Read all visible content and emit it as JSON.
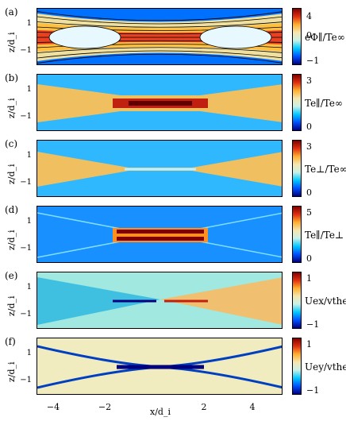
{
  "panels": [
    {
      "label": "(a)",
      "ylabel": "z/d_i",
      "cb_label": "eΦ∥/Te∞",
      "cb_ticks": [
        "4",
        "0",
        "−1"
      ],
      "type": "phi"
    },
    {
      "label": "(b)",
      "ylabel": "z/d_i",
      "cb_label": "Te∥/Te∞",
      "cb_ticks": [
        "3",
        "0"
      ],
      "type": "tpar"
    },
    {
      "label": "(c)",
      "ylabel": "z/d_i",
      "cb_label": "Te⊥/Te∞",
      "cb_ticks": [
        "3",
        "0"
      ],
      "type": "tperp"
    },
    {
      "label": "(d)",
      "ylabel": "z/d_i",
      "cb_label": "Te∥/Te⊥",
      "cb_ticks": [
        "5",
        "0"
      ],
      "type": "ratio"
    },
    {
      "label": "(e)",
      "ylabel": "z/d_i",
      "cb_label": "Uex/vthe",
      "cb_ticks": [
        "1",
        "−1"
      ],
      "type": "uex"
    },
    {
      "label": "(f)",
      "ylabel": "z/d_i",
      "cb_label": "Uey/vthe",
      "cb_ticks": [
        "1",
        "−1"
      ],
      "type": "uey"
    }
  ],
  "y_ticks": [
    "1",
    "−1"
  ],
  "x_ticks": [
    "−4",
    "−2",
    "2",
    "4"
  ],
  "xlabel": "x/d_i",
  "colormap": [
    "#00007f",
    "#0050ff",
    "#00c8ff",
    "#c8f0e8",
    "#f5e6b0",
    "#ffb030",
    "#e03010",
    "#7f0000"
  ]
}
